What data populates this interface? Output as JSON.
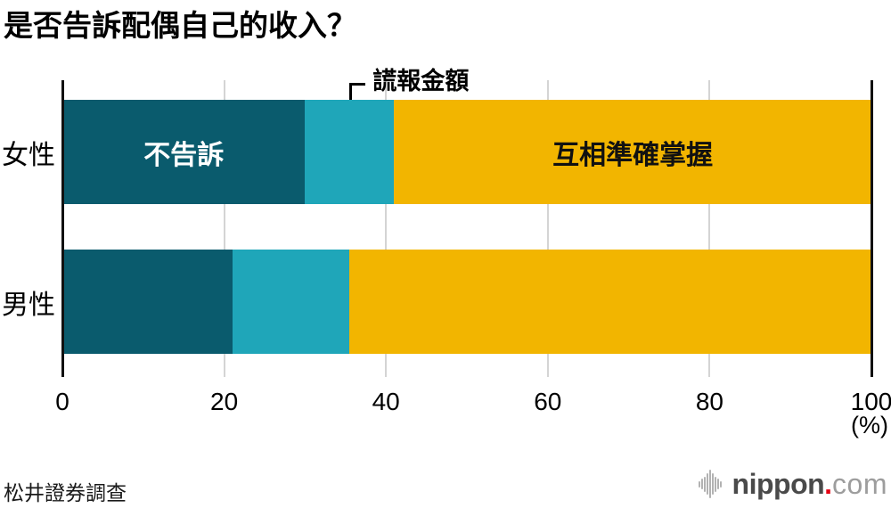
{
  "title": "是否告訴配偶自己的收入？",
  "source": "松井證券調查",
  "logo": {
    "name": "nippon",
    "dot": ".",
    "tld": "com",
    "icon": "soundwave-icon",
    "dot_color": "#e60012"
  },
  "chart_data": {
    "type": "bar",
    "orientation": "horizontal",
    "stacked": true,
    "title": "是否告訴配偶自己的收入？",
    "categories": [
      "女性",
      "男性"
    ],
    "series": [
      {
        "name": "不告訴",
        "color": "#0a5b6d",
        "values": [
          30,
          21
        ]
      },
      {
        "name": "謊報金額",
        "color": "#1fa6b9",
        "values": [
          11,
          14.5
        ]
      },
      {
        "name": "互相準確掌握",
        "color": "#f2b500",
        "values": [
          59,
          64.5
        ]
      }
    ],
    "x_ticks": [
      0,
      20,
      40,
      60,
      80,
      100
    ],
    "xlim": [
      0,
      100
    ],
    "x_unit": "(%)",
    "grid": "vertical",
    "gridline_color": "#d4d4d4",
    "axis_color": "#111111",
    "annotation": "謊報金額",
    "bar_labels": {
      "first_segment": "不告訴",
      "last_segment": "互相準確掌握"
    },
    "legend_position": "none"
  }
}
